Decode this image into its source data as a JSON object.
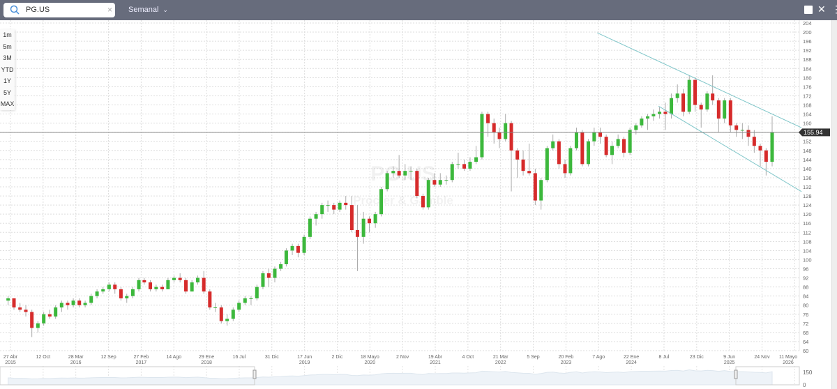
{
  "header": {
    "symbol": "PG.US",
    "interval": "Semanal",
    "icons": [
      "search-icon",
      "clear-icon",
      "chevron-down-icon",
      "image-icon",
      "close-icon",
      "more-vertical-icon"
    ]
  },
  "range_buttons": [
    "1m",
    "5m",
    "3M",
    "YTD",
    "1Y",
    "5Y",
    "MAX"
  ],
  "navigator": {
    "y_labels": [
      "150",
      "0"
    ]
  },
  "chart_data": {
    "type": "candlestick",
    "interval": "Semanal",
    "watermark": {
      "symbol": "PG.US",
      "name": "Procter & Gamble"
    },
    "ylim": [
      60,
      204
    ],
    "y_tick_step": 4,
    "grid": true,
    "last_price": 155.94,
    "last_price_label": "155.94",
    "colors": {
      "up": "#3cb83c",
      "down": "#d62b2b",
      "trendline": "#7fc6c9",
      "last_price_line": "#888888"
    },
    "x_ticks": [
      {
        "date": "2015-04-27",
        "label": "27 Abr",
        "year": "2015"
      },
      {
        "date": "2015-10-12",
        "label": "12 Oct",
        "year": ""
      },
      {
        "date": "2016-03-28",
        "label": "28 Mar",
        "year": "2016"
      },
      {
        "date": "2016-09-12",
        "label": "12 Sep",
        "year": ""
      },
      {
        "date": "2017-02-27",
        "label": "27 Feb",
        "year": "2017"
      },
      {
        "date": "2017-08-14",
        "label": "14 Ago",
        "year": ""
      },
      {
        "date": "2018-01-29",
        "label": "29 Ene",
        "year": "2018"
      },
      {
        "date": "2018-07-16",
        "label": "16 Jul",
        "year": ""
      },
      {
        "date": "2018-12-31",
        "label": "31 Dic",
        "year": ""
      },
      {
        "date": "2019-06-17",
        "label": "17 Jun",
        "year": "2019"
      },
      {
        "date": "2019-12-02",
        "label": "2 Dic",
        "year": ""
      },
      {
        "date": "2020-05-18",
        "label": "18 Mayo",
        "year": "2020"
      },
      {
        "date": "2020-11-02",
        "label": "2 Nov",
        "year": ""
      },
      {
        "date": "2021-04-19",
        "label": "19 Abr",
        "year": "2021"
      },
      {
        "date": "2021-10-04",
        "label": "4 Oct",
        "year": ""
      },
      {
        "date": "2022-03-21",
        "label": "21 Mar",
        "year": "2022"
      },
      {
        "date": "2022-09-05",
        "label": "5 Sep",
        "year": ""
      },
      {
        "date": "2023-02-20",
        "label": "20 Feb",
        "year": "2023"
      },
      {
        "date": "2023-08-07",
        "label": "7 Ago",
        "year": ""
      },
      {
        "date": "2024-01-22",
        "label": "22 Ene",
        "year": "2024"
      },
      {
        "date": "2024-07-08",
        "label": "8 Jul",
        "year": ""
      },
      {
        "date": "2024-12-23",
        "label": "23 Dic",
        "year": ""
      },
      {
        "date": "2025-06-09",
        "label": "9 Jun",
        "year": "2025"
      },
      {
        "date": "2025-11-24",
        "label": "24 Nov",
        "year": ""
      },
      {
        "date": "2026-05-11",
        "label": "11 Mayo",
        "year": "2026"
      }
    ],
    "trendlines": [
      {
        "from": [
          "2023-07-31",
          199.7
        ],
        "to": [
          "2026-06-15",
          158.0
        ]
      },
      {
        "from": [
          "2024-06-10",
          167.5
        ],
        "to": [
          "2026-06-15",
          129.9
        ]
      }
    ],
    "ohlc_columns": [
      "period",
      "open",
      "high",
      "low",
      "close"
    ],
    "ohlc": [
      [
        "2015-04",
        82,
        84,
        80,
        83
      ],
      [
        "2015-05",
        83,
        83,
        78,
        79
      ],
      [
        "2015-06",
        79,
        81,
        77,
        78
      ],
      [
        "2015-07",
        78,
        80,
        75,
        77
      ],
      [
        "2015-08",
        77,
        78,
        66,
        70
      ],
      [
        "2015-09",
        70,
        73,
        68,
        72
      ],
      [
        "2015-10",
        72,
        77,
        71,
        76
      ],
      [
        "2015-11",
        76,
        78,
        74,
        75
      ],
      [
        "2015-12",
        75,
        80,
        74,
        79
      ],
      [
        "2016-01",
        79,
        82,
        77,
        81
      ],
      [
        "2016-02",
        81,
        82,
        78,
        80
      ],
      [
        "2016-03",
        80,
        83,
        79,
        82
      ],
      [
        "2016-04",
        82,
        83,
        79,
        80
      ],
      [
        "2016-05",
        80,
        82,
        79,
        81
      ],
      [
        "2016-06",
        81,
        85,
        80,
        84
      ],
      [
        "2016-07",
        84,
        87,
        83,
        86
      ],
      [
        "2016-08",
        86,
        88,
        85,
        87
      ],
      [
        "2016-09",
        87,
        90,
        86,
        89
      ],
      [
        "2016-10",
        89,
        90,
        85,
        87
      ],
      [
        "2016-11",
        87,
        88,
        82,
        83
      ],
      [
        "2016-12",
        83,
        85,
        81,
        84
      ],
      [
        "2017-01",
        84,
        88,
        83,
        87
      ],
      [
        "2017-02",
        87,
        92,
        86,
        91
      ],
      [
        "2017-03",
        91,
        92,
        89,
        90
      ],
      [
        "2017-04",
        90,
        91,
        86,
        87
      ],
      [
        "2017-05",
        87,
        89,
        86,
        88
      ],
      [
        "2017-06",
        88,
        89,
        86,
        87
      ],
      [
        "2017-07",
        87,
        92,
        87,
        91
      ],
      [
        "2017-08",
        91,
        93,
        90,
        92
      ],
      [
        "2017-09",
        92,
        94,
        90,
        91
      ],
      [
        "2017-10",
        91,
        92,
        85,
        86
      ],
      [
        "2017-11",
        86,
        91,
        86,
        90
      ],
      [
        "2017-12",
        90,
        93,
        89,
        92
      ],
      [
        "2018-01",
        92,
        95,
        85,
        86
      ],
      [
        "2018-02",
        86,
        87,
        78,
        79
      ],
      [
        "2018-03",
        79,
        81,
        77,
        79
      ],
      [
        "2018-04",
        79,
        80,
        72,
        73
      ],
      [
        "2018-05",
        73,
        76,
        71,
        74
      ],
      [
        "2018-06",
        74,
        79,
        73,
        78
      ],
      [
        "2018-07",
        78,
        82,
        77,
        81
      ],
      [
        "2018-08",
        81,
        84,
        80,
        83
      ],
      [
        "2018-09",
        83,
        84,
        80,
        83
      ],
      [
        "2018-10",
        83,
        89,
        82,
        88
      ],
      [
        "2018-11",
        88,
        95,
        87,
        94
      ],
      [
        "2018-12",
        94,
        96,
        88,
        92
      ],
      [
        "2019-01",
        92,
        97,
        90,
        96
      ],
      [
        "2019-02",
        96,
        99,
        95,
        98
      ],
      [
        "2019-03",
        98,
        105,
        97,
        104
      ],
      [
        "2019-04",
        104,
        107,
        102,
        106
      ],
      [
        "2019-05",
        106,
        107,
        101,
        103
      ],
      [
        "2019-06",
        103,
        111,
        102,
        110
      ],
      [
        "2019-07",
        110,
        119,
        109,
        118
      ],
      [
        "2019-08",
        118,
        121,
        115,
        120
      ],
      [
        "2019-09",
        120,
        125,
        118,
        124
      ],
      [
        "2019-10",
        124,
        126,
        121,
        124
      ],
      [
        "2019-11",
        124,
        125,
        120,
        122
      ],
      [
        "2019-12",
        122,
        126,
        121,
        125
      ],
      [
        "2020-01",
        125,
        128,
        122,
        124
      ],
      [
        "2020-02",
        124,
        128,
        112,
        113
      ],
      [
        "2020-03",
        113,
        124,
        95,
        110
      ],
      [
        "2020-04",
        110,
        121,
        107,
        118
      ],
      [
        "2020-05",
        118,
        119,
        112,
        116
      ],
      [
        "2020-06",
        116,
        121,
        114,
        120
      ],
      [
        "2020-07",
        120,
        132,
        119,
        131
      ],
      [
        "2020-08",
        131,
        139,
        130,
        138
      ],
      [
        "2020-09",
        138,
        141,
        136,
        139
      ],
      [
        "2020-10",
        139,
        146,
        136,
        137
      ],
      [
        "2020-11",
        137,
        142,
        135,
        139
      ],
      [
        "2020-12",
        139,
        141,
        135,
        139
      ],
      [
        "2021-01",
        139,
        140,
        127,
        128
      ],
      [
        "2021-02",
        128,
        129,
        122,
        123
      ],
      [
        "2021-03",
        123,
        136,
        122,
        135
      ],
      [
        "2021-04",
        135,
        138,
        132,
        133
      ],
      [
        "2021-05",
        133,
        138,
        132,
        135
      ],
      [
        "2021-06",
        135,
        137,
        133,
        135
      ],
      [
        "2021-07",
        135,
        143,
        134,
        142
      ],
      [
        "2021-08",
        142,
        147,
        140,
        142
      ],
      [
        "2021-09",
        142,
        144,
        139,
        140
      ],
      [
        "2021-10",
        140,
        145,
        139,
        143
      ],
      [
        "2021-11",
        143,
        150,
        142,
        145
      ],
      [
        "2021-12",
        145,
        165,
        144,
        164
      ],
      [
        "2022-01",
        164,
        165,
        154,
        160
      ],
      [
        "2022-02",
        160,
        162,
        151,
        156
      ],
      [
        "2022-03",
        156,
        158,
        149,
        153
      ],
      [
        "2022-04",
        153,
        164,
        152,
        160
      ],
      [
        "2022-05",
        160,
        161,
        130,
        148
      ],
      [
        "2022-06",
        148,
        149,
        136,
        144
      ],
      [
        "2022-07",
        144,
        148,
        137,
        139
      ],
      [
        "2022-08",
        139,
        151,
        137,
        138
      ],
      [
        "2022-09",
        138,
        140,
        124,
        126
      ],
      [
        "2022-10",
        126,
        136,
        122,
        135
      ],
      [
        "2022-11",
        135,
        150,
        134,
        149
      ],
      [
        "2022-12",
        149,
        155,
        148,
        152
      ],
      [
        "2023-01",
        152,
        153,
        140,
        142
      ],
      [
        "2023-02",
        142,
        144,
        136,
        138
      ],
      [
        "2023-03",
        138,
        150,
        137,
        149
      ],
      [
        "2023-04",
        149,
        158,
        148,
        156
      ],
      [
        "2023-05",
        156,
        157,
        141,
        142
      ],
      [
        "2023-06",
        142,
        153,
        141,
        152
      ],
      [
        "2023-07",
        152,
        158,
        150,
        156
      ],
      [
        "2023-08",
        156,
        158,
        151,
        154
      ],
      [
        "2023-09",
        154,
        155,
        145,
        146
      ],
      [
        "2023-10",
        146,
        152,
        142,
        150
      ],
      [
        "2023-11",
        150,
        155,
        149,
        153
      ],
      [
        "2023-12",
        153,
        154,
        145,
        147
      ],
      [
        "2024-01",
        147,
        158,
        146,
        157
      ],
      [
        "2024-02",
        157,
        160,
        155,
        159
      ],
      [
        "2024-03",
        159,
        163,
        158,
        162
      ],
      [
        "2024-04",
        162,
        164,
        157,
        163
      ],
      [
        "2024-05",
        163,
        166,
        161,
        164
      ],
      [
        "2024-06",
        164,
        167,
        162,
        165
      ],
      [
        "2024-07",
        165,
        169,
        157,
        164
      ],
      [
        "2024-08",
        164,
        173,
        162,
        171
      ],
      [
        "2024-09",
        171,
        177,
        169,
        173
      ],
      [
        "2024-10",
        173,
        175,
        163,
        165
      ],
      [
        "2024-11",
        165,
        181,
        164,
        179
      ],
      [
        "2024-12",
        179,
        180,
        165,
        168
      ],
      [
        "2025-01",
        168,
        169,
        158,
        166
      ],
      [
        "2025-02",
        166,
        174,
        165,
        173
      ],
      [
        "2025-03",
        173,
        181,
        168,
        170
      ],
      [
        "2025-04",
        170,
        171,
        156,
        162
      ],
      [
        "2025-05",
        162,
        171,
        160,
        170
      ],
      [
        "2025-06",
        170,
        171,
        156,
        159
      ],
      [
        "2025-07",
        159,
        160,
        154,
        157
      ],
      [
        "2025-08",
        157,
        160,
        153,
        157
      ],
      [
        "2025-09",
        157,
        159,
        150,
        154
      ],
      [
        "2025-10",
        154,
        157,
        147,
        150
      ],
      [
        "2025-11",
        150,
        151,
        141,
        148
      ],
      [
        "2025-12",
        148,
        149,
        137,
        143
      ],
      [
        "2026-01",
        143,
        163,
        141,
        156
      ]
    ]
  }
}
